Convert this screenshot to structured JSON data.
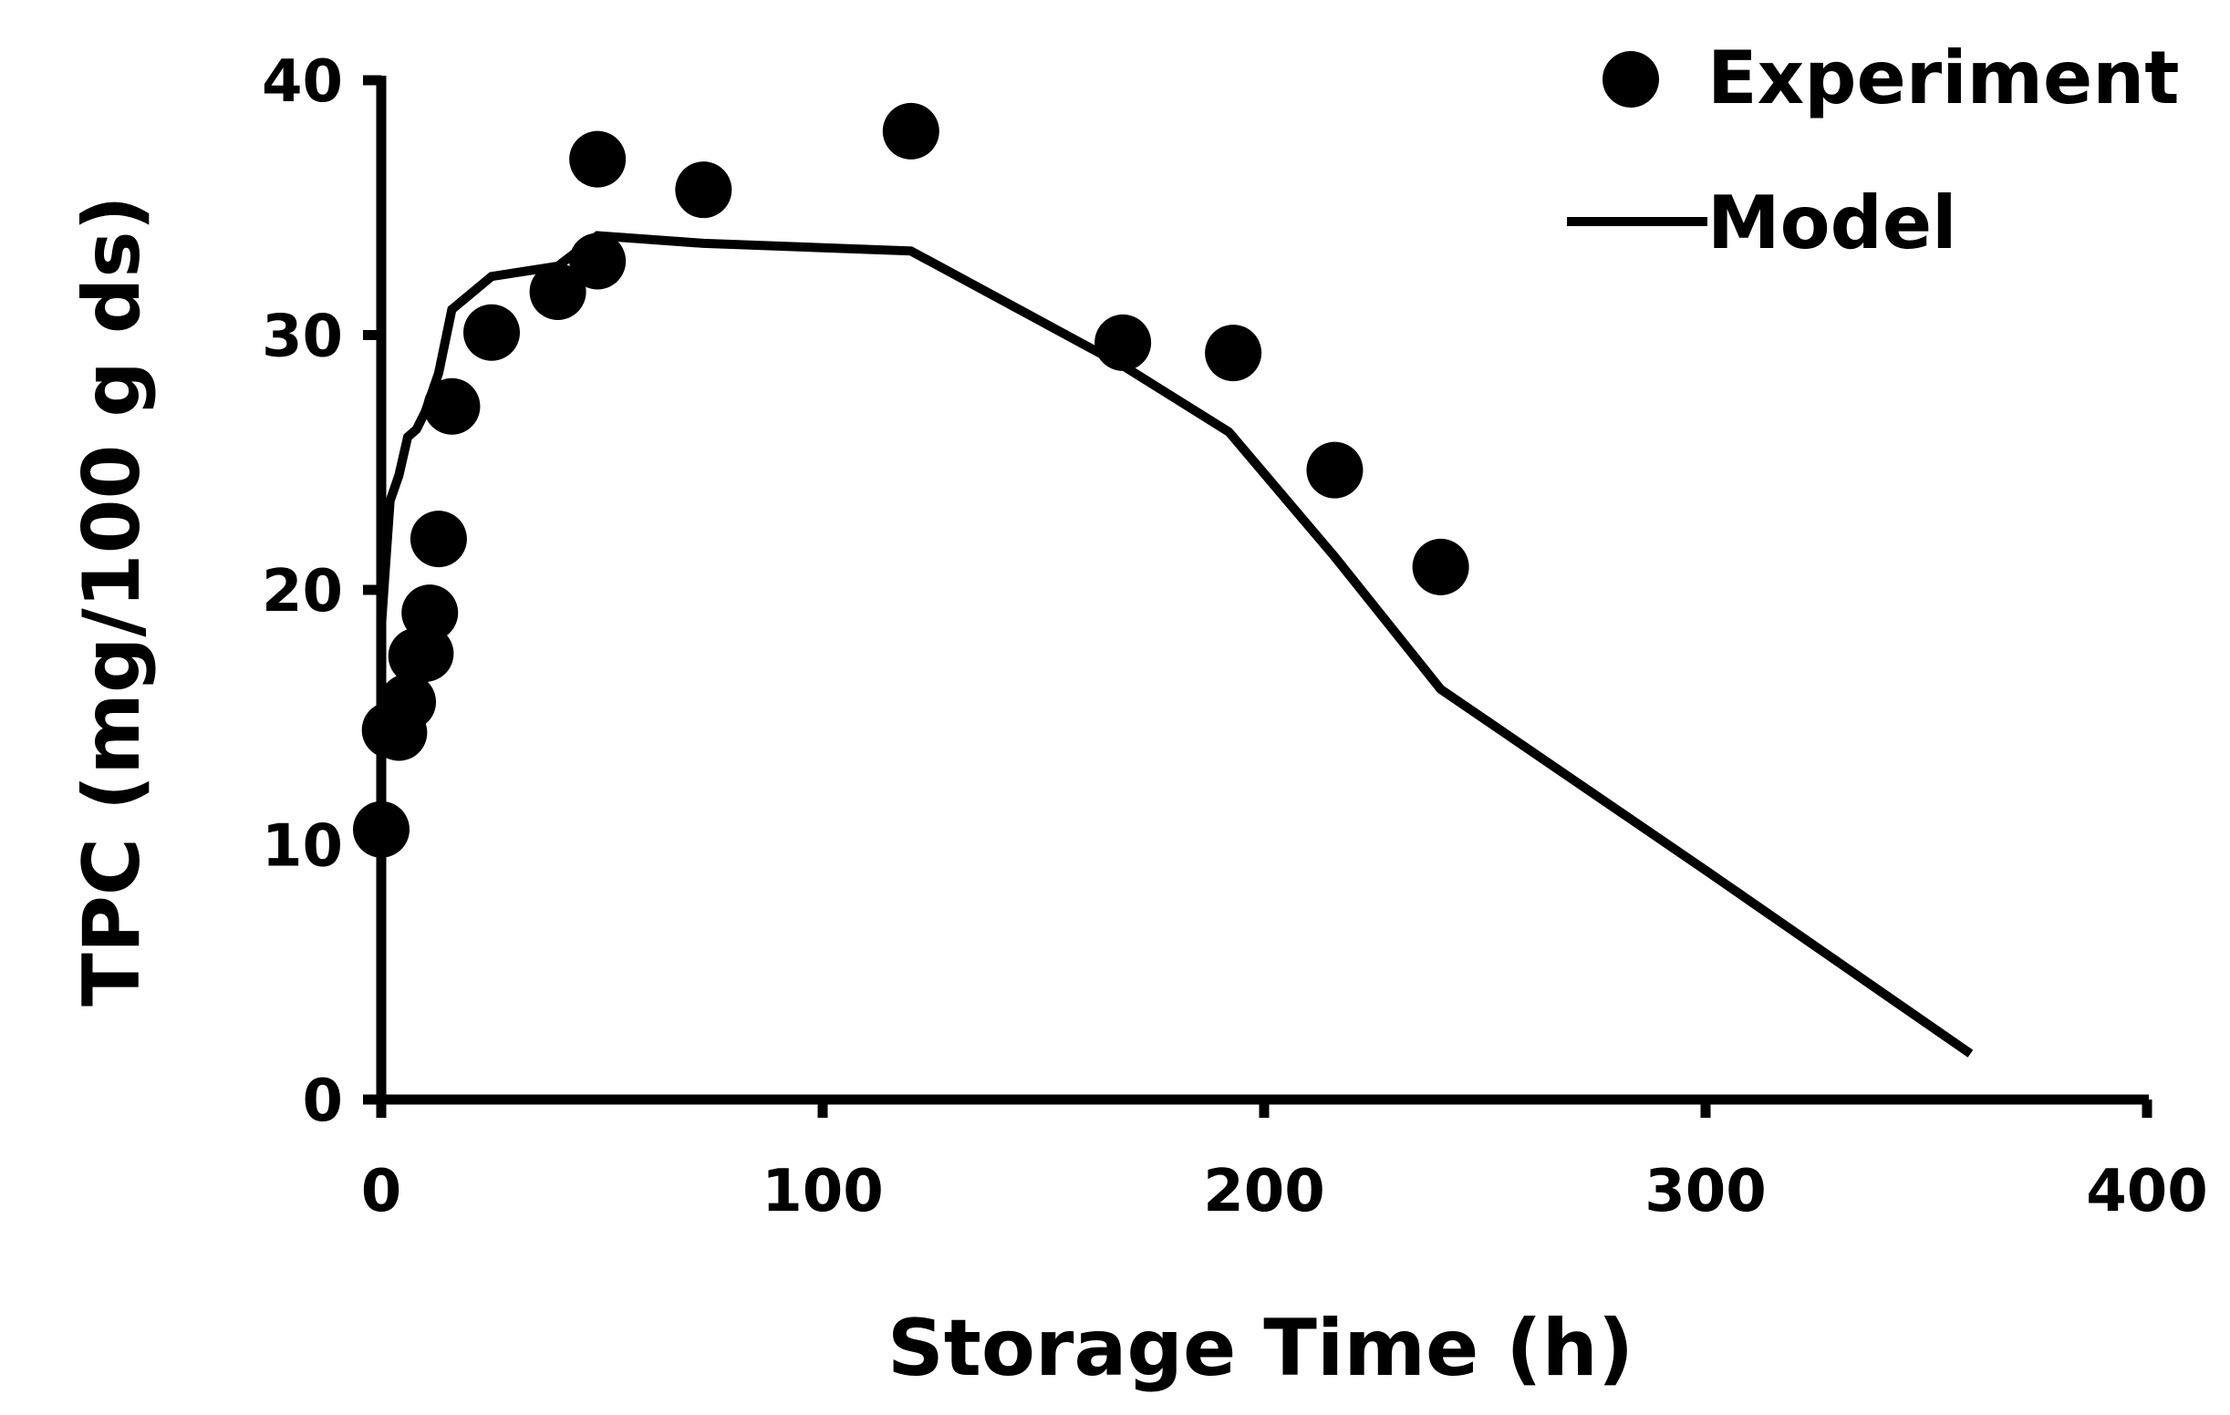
{
  "chart_data": {
    "type": "scatter",
    "title": "",
    "xlabel": "Storage Time (h)",
    "ylabel": "TPC (mg/100 g ds)",
    "xlim": [
      0,
      400
    ],
    "ylim": [
      0,
      40
    ],
    "x_ticks": [
      0,
      100,
      200,
      300,
      400
    ],
    "y_ticks": [
      0,
      10,
      20,
      30,
      40
    ],
    "grid": false,
    "legend_position": "top-right",
    "series": [
      {
        "name": "Experiment",
        "kind": "scatter",
        "color": "#000000",
        "points": [
          {
            "x": 0,
            "y": 10.6
          },
          {
            "x": 2,
            "y": 14.5
          },
          {
            "x": 4,
            "y": 14.4
          },
          {
            "x": 6,
            "y": 15.6
          },
          {
            "x": 8,
            "y": 17.4
          },
          {
            "x": 10,
            "y": 17.5
          },
          {
            "x": 11,
            "y": 19.1
          },
          {
            "x": 13,
            "y": 22.0
          },
          {
            "x": 16,
            "y": 27.2
          },
          {
            "x": 25,
            "y": 30.1
          },
          {
            "x": 40,
            "y": 31.7
          },
          {
            "x": 49,
            "y": 32.9
          },
          {
            "x": 49,
            "y": 36.9
          },
          {
            "x": 73,
            "y": 35.7
          },
          {
            "x": 120,
            "y": 38.0
          },
          {
            "x": 168,
            "y": 29.7
          },
          {
            "x": 193,
            "y": 29.3
          },
          {
            "x": 216,
            "y": 24.7
          },
          {
            "x": 240,
            "y": 20.9
          }
        ]
      },
      {
        "name": "Model",
        "kind": "line",
        "color": "#000000",
        "points": [
          {
            "x": 0,
            "y": 18.5
          },
          {
            "x": 1,
            "y": 21.0
          },
          {
            "x": 2,
            "y": 23.5
          },
          {
            "x": 4,
            "y": 24.5
          },
          {
            "x": 6,
            "y": 26.0
          },
          {
            "x": 8,
            "y": 26.3
          },
          {
            "x": 10,
            "y": 27.0
          },
          {
            "x": 13,
            "y": 28.5
          },
          {
            "x": 16,
            "y": 31.0
          },
          {
            "x": 25,
            "y": 32.3
          },
          {
            "x": 40,
            "y": 32.7
          },
          {
            "x": 49,
            "y": 33.9
          },
          {
            "x": 73,
            "y": 33.6
          },
          {
            "x": 120,
            "y": 33.3
          },
          {
            "x": 168,
            "y": 28.8
          },
          {
            "x": 192,
            "y": 26.2
          },
          {
            "x": 216,
            "y": 21.3
          },
          {
            "x": 240,
            "y": 16.1
          },
          {
            "x": 300,
            "y": 9.0
          },
          {
            "x": 360,
            "y": 1.8
          }
        ]
      }
    ]
  }
}
